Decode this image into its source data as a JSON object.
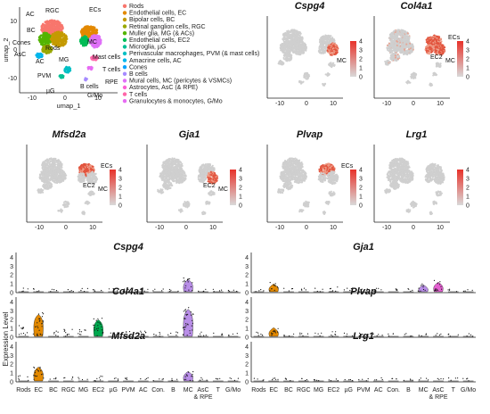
{
  "chart_data": {
    "type": "scatter",
    "axes": {
      "xlabel": "umap_1",
      "ylabel": "umap_2",
      "x_ticks": [
        "-10",
        "0",
        "10"
      ],
      "y_ticks": [
        "-10",
        "0",
        "10"
      ]
    },
    "colorbar_ticks": [
      "0",
      "1",
      "2",
      "3",
      "4"
    ],
    "cluster_plot": {
      "cluster_labels": [
        "RGC",
        "AC",
        "BC",
        "ECs",
        "MC",
        "Cones",
        "Rods",
        "MG",
        "Mast cells",
        "AsC",
        "AC",
        "T cells",
        "PVM",
        "RPE",
        "µG",
        "B cells",
        "G/Mo"
      ],
      "legend": [
        {
          "label": "Rods",
          "color": "#f8766d"
        },
        {
          "label": "Endothelial cells, EC",
          "color": "#e38900"
        },
        {
          "label": "Bipolar cells, BC",
          "color": "#c49a00"
        },
        {
          "label": "Retinal ganglion cells, RGC",
          "color": "#99a800"
        },
        {
          "label": "Muller glia, MG (& ACs)",
          "color": "#53b400"
        },
        {
          "label": "Endothelial cells, EC2",
          "color": "#00bc56"
        },
        {
          "label": "Microglia, µG",
          "color": "#00c094"
        },
        {
          "label": "Perivascular macrophages, PVM (& mast cells)",
          "color": "#00bfc4"
        },
        {
          "label": "Amacrine cells, AC",
          "color": "#00b6eb"
        },
        {
          "label": "Cones",
          "color": "#06a4ff"
        },
        {
          "label": "B cells",
          "color": "#a58aff"
        },
        {
          "label": "Mural cells, MC (pericytes & VSMCs)",
          "color": "#df70f8"
        },
        {
          "label": "Astrocytes, AsC (& RPE)",
          "color": "#fb61d7"
        },
        {
          "label": "T cells",
          "color": "#ff66a8"
        },
        {
          "label": "Granulocytes & monocytes, G/Mo",
          "color": "#e76bf3"
        }
      ]
    },
    "feature_plots": [
      {
        "gene": "Cspg4",
        "labels": [
          "MC"
        ],
        "expressed_in": [
          "MC"
        ]
      },
      {
        "gene": "Col4a1",
        "labels": [
          "ECs",
          "EC2",
          "MC"
        ],
        "expressed_in": [
          "ECs",
          "EC2",
          "MC"
        ]
      },
      {
        "gene": "Mfsd2a",
        "labels": [
          "ECs",
          "EC2",
          "MC"
        ],
        "expressed_in": [
          "ECs"
        ]
      },
      {
        "gene": "Gja1",
        "labels": [
          "EC2",
          "MC"
        ],
        "expressed_in": [
          "MC"
        ]
      },
      {
        "gene": "Plvap",
        "labels": [
          "ECs"
        ],
        "expressed_in": [
          "ECs"
        ]
      },
      {
        "gene": "Lrg1",
        "labels": [],
        "expressed_in": []
      }
    ],
    "violin": {
      "ylabel": "Expression Level",
      "y_ticks": [
        "0",
        "1",
        "2",
        "3",
        "4"
      ],
      "categories": [
        "Rods",
        "EC",
        "BC",
        "RGC",
        "MG",
        "EC2",
        "µG",
        "PVM",
        "AC",
        "Con.",
        "B",
        "MC",
        "AsC & RPE",
        "T",
        "G/Mo"
      ],
      "series": [
        {
          "name": "Cspg4",
          "values": [
            0.1,
            0.1,
            0.05,
            0.1,
            0.1,
            0.1,
            0.05,
            0.1,
            0.05,
            0.05,
            0.05,
            1.3,
            0.1,
            0.05,
            0.05
          ],
          "highlight": {
            "11": "#b98ee8"
          }
        },
        {
          "name": "Gja1",
          "values": [
            0.1,
            0.8,
            0.1,
            0.1,
            0.1,
            0.4,
            0.1,
            0.1,
            0.1,
            0.05,
            0.05,
            0.7,
            1.0,
            0.05,
            0.05
          ],
          "highlight": {
            "1": "#e38900",
            "11": "#b98ee8",
            "12": "#e35fd0"
          }
        },
        {
          "name": "Col4a1",
          "values": [
            1.0,
            2.4,
            0.3,
            0.6,
            0.5,
            1.8,
            0.3,
            0.3,
            0.3,
            0.2,
            0.2,
            3.0,
            0.3,
            0.1,
            0.1
          ],
          "highlight": {
            "1": "#e38900",
            "5": "#00a84e",
            "11": "#b98ee8"
          }
        },
        {
          "name": "Plvap",
          "values": [
            0.2,
            0.9,
            0.1,
            0.2,
            0.1,
            0.3,
            0.1,
            0.1,
            0.1,
            0.05,
            0.05,
            0.1,
            0.1,
            0.05,
            0.05
          ],
          "highlight": {
            "1": "#e38900"
          }
        },
        {
          "name": "Mfsd2a",
          "values": [
            0.3,
            1.5,
            0.1,
            0.2,
            0.1,
            0.4,
            0.1,
            0.1,
            0.1,
            0.05,
            0.05,
            1.0,
            0.1,
            0.05,
            0.05
          ],
          "highlight": {
            "1": "#e38900",
            "11": "#b98ee8"
          }
        },
        {
          "name": "Lrg1",
          "values": [
            0.05,
            0.2,
            0.05,
            0.05,
            0.05,
            0.05,
            0.05,
            0.05,
            0.05,
            0.05,
            0.05,
            0.05,
            0.05,
            0.05,
            0.05
          ],
          "highlight": {}
        }
      ]
    }
  }
}
